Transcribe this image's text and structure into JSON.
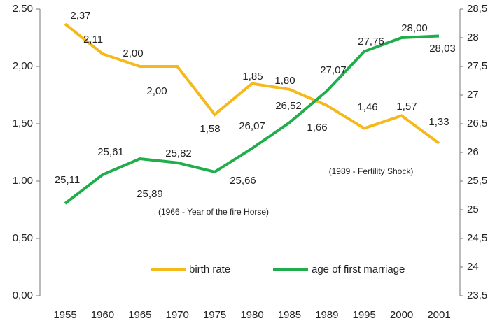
{
  "chart_data": {
    "type": "line",
    "categories": [
      "1955",
      "1960",
      "1965",
      "1970",
      "1975",
      "1980",
      "1985",
      "1989",
      "1995",
      "2000",
      "2001"
    ],
    "series": [
      {
        "name": "birth rate",
        "color": "#f6b91b",
        "axis": "y",
        "values": [
          2.37,
          2.11,
          2.0,
          2.0,
          1.58,
          1.85,
          1.8,
          1.66,
          1.46,
          1.57,
          1.33
        ],
        "value_labels": [
          "2,37",
          "2,11",
          "2,00",
          "2,00",
          "1,58",
          "1,85",
          "1,80",
          "1,66",
          "1,46",
          "1,57",
          "1,33"
        ]
      },
      {
        "name": "age of first marriage",
        "color": "#1fae4b",
        "axis": "y2",
        "values": [
          25.11,
          25.61,
          25.89,
          25.82,
          25.66,
          26.07,
          26.52,
          27.07,
          27.76,
          28.0,
          28.03
        ],
        "value_labels": [
          "25,11",
          "25,61",
          "25,89",
          "25,82",
          "25,66",
          "26,07",
          "26,52",
          "27,07",
          "27,76",
          "28,00",
          "28,03"
        ]
      }
    ],
    "ylim": [
      0,
      2.5
    ],
    "yticks": [
      {
        "value": 0,
        "label": "0,00"
      },
      {
        "value": 0.5,
        "label": "0,50"
      },
      {
        "value": 1,
        "label": "1,00"
      },
      {
        "value": 1.5,
        "label": "1,50"
      },
      {
        "value": 2,
        "label": "2,00"
      },
      {
        "value": 2.5,
        "label": "2,50"
      }
    ],
    "y2lim": [
      23.5,
      28.5
    ],
    "y2ticks": [
      {
        "value": 23.5,
        "label": "23,5"
      },
      24,
      {
        "value": 24.5,
        "label": "24,5"
      },
      25,
      {
        "value": 25.5,
        "label": "25,5"
      },
      26,
      {
        "value": 26.5,
        "label": "26,5"
      },
      27,
      {
        "value": 27.5,
        "label": "27,5"
      },
      28,
      {
        "value": 28.5,
        "label": "28,5"
      }
    ],
    "annotations": [
      "(1966 - Year of the fire Horse)",
      "(1989 - Fertility Shock)"
    ],
    "legend": "bottom"
  }
}
